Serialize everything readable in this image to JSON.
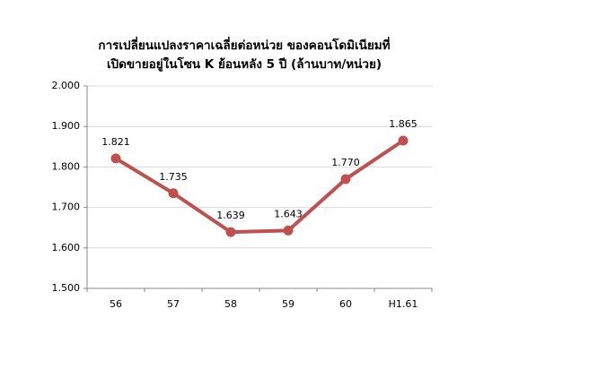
{
  "chart_data": {
    "type": "line",
    "title": [
      "การเปลี่ยนแปลงราคาเฉลี่ยต่อหน่วย ของคอนโดมิเนียมที่",
      "เปิดขายอยู่ในโซน K ย้อนหลัง 5 ปี (ล้านบาท/หน่วย)"
    ],
    "categories": [
      "56",
      "57",
      "58",
      "59",
      "60",
      "H1.61"
    ],
    "series": [
      {
        "color": "#c0504d",
        "values": [
          1.821,
          1.735,
          1.639,
          1.643,
          1.77,
          1.865
        ],
        "value_labels": [
          "1.821",
          "1.735",
          "1.639",
          "1.643",
          "1.770",
          "1.865"
        ]
      }
    ],
    "ylim": [
      1.5,
      2.0
    ],
    "yticks": [
      {
        "value": 1.5,
        "label": "1.500"
      },
      {
        "value": 1.6,
        "label": "1.600"
      },
      {
        "value": 1.7,
        "label": "1.700"
      },
      {
        "value": 1.8,
        "label": "1.800"
      },
      {
        "value": 1.9,
        "label": "1.900"
      },
      {
        "value": 2.0,
        "label": "2.000"
      }
    ],
    "grid": true
  }
}
